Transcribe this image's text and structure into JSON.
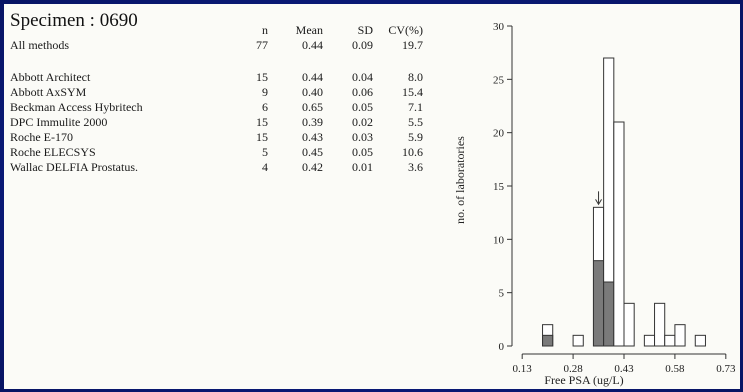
{
  "specimen_label": "Specimen : 0690",
  "table": {
    "headers": {
      "n": "n",
      "mean": "Mean",
      "sd": "SD",
      "cv": "CV(%)"
    },
    "all": {
      "name": "All methods",
      "n": "77",
      "mean": "0.44",
      "sd": "0.09",
      "cv": "19.7"
    },
    "methods": [
      {
        "name": "Abbott Architect",
        "n": "15",
        "mean": "0.44",
        "sd": "0.04",
        "cv": "8.0"
      },
      {
        "name": "Abbott AxSYM",
        "n": "9",
        "mean": "0.40",
        "sd": "0.06",
        "cv": "15.4"
      },
      {
        "name": "Beckman Access Hybritech",
        "n": "6",
        "mean": "0.65",
        "sd": "0.05",
        "cv": "7.1"
      },
      {
        "name": "DPC Immulite 2000",
        "n": "15",
        "mean": "0.39",
        "sd": "0.02",
        "cv": "5.5"
      },
      {
        "name": "Roche E-170",
        "n": "15",
        "mean": "0.43",
        "sd": "0.03",
        "cv": "5.9"
      },
      {
        "name": "Roche ELECSYS",
        "n": "5",
        "mean": "0.45",
        "sd": "0.05",
        "cv": "10.6"
      },
      {
        "name": "Wallac DELFIA Prostatus.",
        "n": "4",
        "mean": "0.42",
        "sd": "0.01",
        "cv": "3.6"
      }
    ]
  },
  "chart_data": {
    "type": "bar",
    "xlabel": "Free PSA (ug/L)",
    "ylabel": "no. of laboratories",
    "ylim": [
      0,
      30
    ],
    "yticks": [
      0,
      5,
      10,
      15,
      20,
      25,
      30
    ],
    "xlim": [
      0.1,
      0.76
    ],
    "xticks": [
      0.13,
      0.28,
      0.43,
      0.58,
      0.73
    ],
    "bin_width": 0.03,
    "bins": [
      {
        "x": 0.205,
        "total": 2,
        "highlighted": 1
      },
      {
        "x": 0.295,
        "total": 1,
        "highlighted": 0
      },
      {
        "x": 0.355,
        "total": 13,
        "highlighted": 8
      },
      {
        "x": 0.385,
        "total": 27,
        "highlighted": 6
      },
      {
        "x": 0.415,
        "total": 21,
        "highlighted": 0
      },
      {
        "x": 0.445,
        "total": 4,
        "highlighted": 0
      },
      {
        "x": 0.505,
        "total": 1,
        "highlighted": 0
      },
      {
        "x": 0.535,
        "total": 4,
        "highlighted": 0
      },
      {
        "x": 0.565,
        "total": 1,
        "highlighted": 0
      },
      {
        "x": 0.595,
        "total": 2,
        "highlighted": 0
      },
      {
        "x": 0.655,
        "total": 1,
        "highlighted": 0
      }
    ],
    "marker_x": 0.355,
    "colors": {
      "outline": "#333333",
      "highlight": "#7a7a7a",
      "bar_fill": "#ffffff"
    },
    "grid": false
  }
}
